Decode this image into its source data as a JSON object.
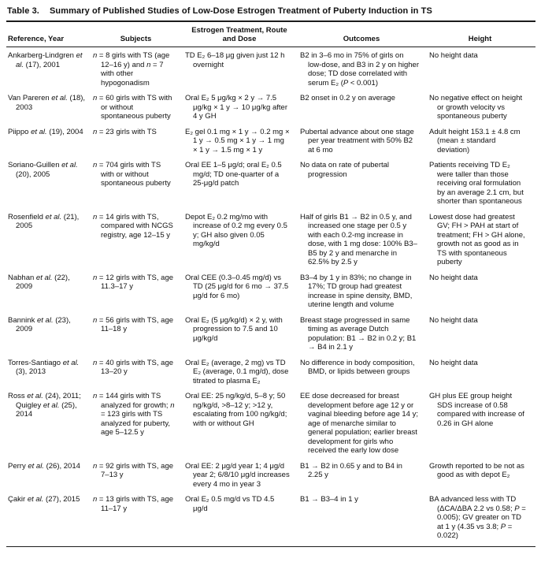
{
  "table": {
    "label": "Table 3.",
    "title": "Summary of Published Studies of Low-Dose Estrogen Treatment of Puberty Induction in TS",
    "columns": [
      "Reference, Year",
      "Subjects",
      "Estrogen Treatment, Route and Dose",
      "Outcomes",
      "Height"
    ],
    "column_keys": [
      "reference",
      "subjects",
      "treatment",
      "outcomes",
      "height"
    ],
    "rows": [
      {
        "reference": "Ankarberg-Lindgren et al. (17), 2001",
        "subjects": "n = 8 girls with TS (age 12–16 y) and n = 7 with other hypogonadism",
        "treatment": "TD E₂ 6–18 μg given just 12 h overnight",
        "outcomes": "B2 in 3–6 mo in 75% of girls on low-dose, and B3 in 2 y on higher dose; TD dose correlated with serum E₂ (P < 0.001)",
        "height": "No height data"
      },
      {
        "reference": "Van Pareren et al. (18), 2003",
        "subjects": "n = 60 girls with TS with or without spontaneous puberty",
        "treatment": "Oral E₂ 5 μg/kg × 2 y → 7.5 μg/kg × 1 y → 10 μg/kg after 4 y GH",
        "outcomes": "B2 onset in 0.2 y on average",
        "height": "No negative effect on height or growth velocity vs spontaneous puberty"
      },
      {
        "reference": "Piippo et al. (19), 2004",
        "subjects": "n = 23 girls with TS",
        "treatment": "E₂ gel 0.1 mg × 1 y → 0.2 mg × 1 y → 0.5 mg × 1 y → 1 mg × 1 y → 1.5 mg × 1 y",
        "outcomes": "Pubertal advance about one stage per year treatment with 50% B2 at 6 mo",
        "height": "Adult height 153.1 ± 4.8 cm (mean ± standard deviation)"
      },
      {
        "reference": "Soriano-Guillen et al. (20), 2005",
        "subjects": "n = 704 girls with TS with or without spontaneous puberty",
        "treatment": "Oral EE 1–5 μg/d; oral E₂ 0.5 mg/d; TD one-quarter of a 25-μg/d patch",
        "outcomes": "No data on rate of pubertal progression",
        "height": "Patients receiving TD E₂ were taller than those receiving oral formulation by an average 2.1 cm, but shorter than spontaneous"
      },
      {
        "reference": "Rosenfield et al. (21), 2005",
        "subjects": "n = 14 girls with TS, compared with NCGS registry, age 12–15 y",
        "treatment": "Depot E₂ 0.2 mg/mo with increase of 0.2 mg every 0.5 y; GH also given 0.05 mg/kg/d",
        "outcomes": "Half of girls B1 → B2 in 0.5 y, and increased one stage per 0.5 y with each 0.2-mg increase in dose, with 1 mg dose: 100% B3–B5 by 2 y and menarche in 62.5% by 2.5 y",
        "height": "Lowest dose had greatest GV; FH > PAH at start of treatment; FH > GH alone, growth not as good as in TS with spontaneous puberty"
      },
      {
        "reference": "Nabhan et al. (22), 2009",
        "subjects": "n = 12 girls with TS, age 11.3–17 y",
        "treatment": "Oral CEE (0.3–0.45 mg/d) vs TD (25 μg/d for 6 mo → 37.5 μg/d for 6 mo)",
        "outcomes": "B3–4 by 1 y in 83%; no change in 17%; TD group had greatest increase in spine density, BMD, uterine length and volume",
        "height": "No height data"
      },
      {
        "reference": "Bannink et al. (23), 2009",
        "subjects": "n = 56 girls with TS, age 11–18 y",
        "treatment": "Oral E₂ (5 μg/kg/d) × 2 y, with progression to 7.5 and 10 μg/kg/d",
        "outcomes": "Breast stage progressed in same timing as average Dutch population: B1 → B2 in 0.2 y; B1 → B4 in 2.1 y",
        "height": "No height data"
      },
      {
        "reference": "Torres-Santiago et al. (3), 2013",
        "subjects": "n = 40 girls with TS, age 13–20 y",
        "treatment": "Oral E₂ (average, 2 mg) vs TD E₂ (average, 0.1 mg/d), dose titrated to plasma E₂",
        "outcomes": "No difference in body composition, BMD, or lipids between groups",
        "height": "No height data"
      },
      {
        "reference": "Ross et al. (24), 2011; Quigley et al. (25), 2014",
        "subjects": "n = 144 girls with TS analyzed for growth; n = 123 girls with TS analyzed for puberty, age 5–12.5 y",
        "treatment": "Oral EE: 25 ng/kg/d, 5–8 y; 50 ng/kg/d, >8–12 y; >12 y, escalating from 100 ng/kg/d; with or without GH",
        "outcomes": "EE dose decreased for breast development before age 12 y or vaginal bleeding before age 14 y; age of menarche similar to general population; earlier breast development for girls who received the early low dose",
        "height": "GH plus EE group height SDS increase of 0.58 compared with increase of 0.26 in GH alone"
      },
      {
        "reference": "Perry et al. (26), 2014",
        "subjects": "n = 92 girls with TS, age 7–13 y",
        "treatment": "Oral EE: 2 μg/d year 1; 4 μg/d year 2; 6/8/10 μg/d increases every 4 mo in year 3",
        "outcomes": "B1 → B2 in 0.65 y and to B4 in 2.25 y",
        "height": "Growth reported to be not as good as with depot E₂"
      },
      {
        "reference": "Çakir et al. (27), 2015",
        "subjects": "n = 13 girls with TS, age 11–17 y",
        "treatment": "Oral E₂ 0.5 mg/d vs TD 4.5 μg/d",
        "outcomes": "B1 → B3–4 in 1 y",
        "height": "BA advanced less with TD (ΔCA/ΔBA 2.2 vs 0.58; P = 0.005); GV greater on TD at 1 y (4.35 vs 3.8; P = 0.022)"
      }
    ]
  }
}
